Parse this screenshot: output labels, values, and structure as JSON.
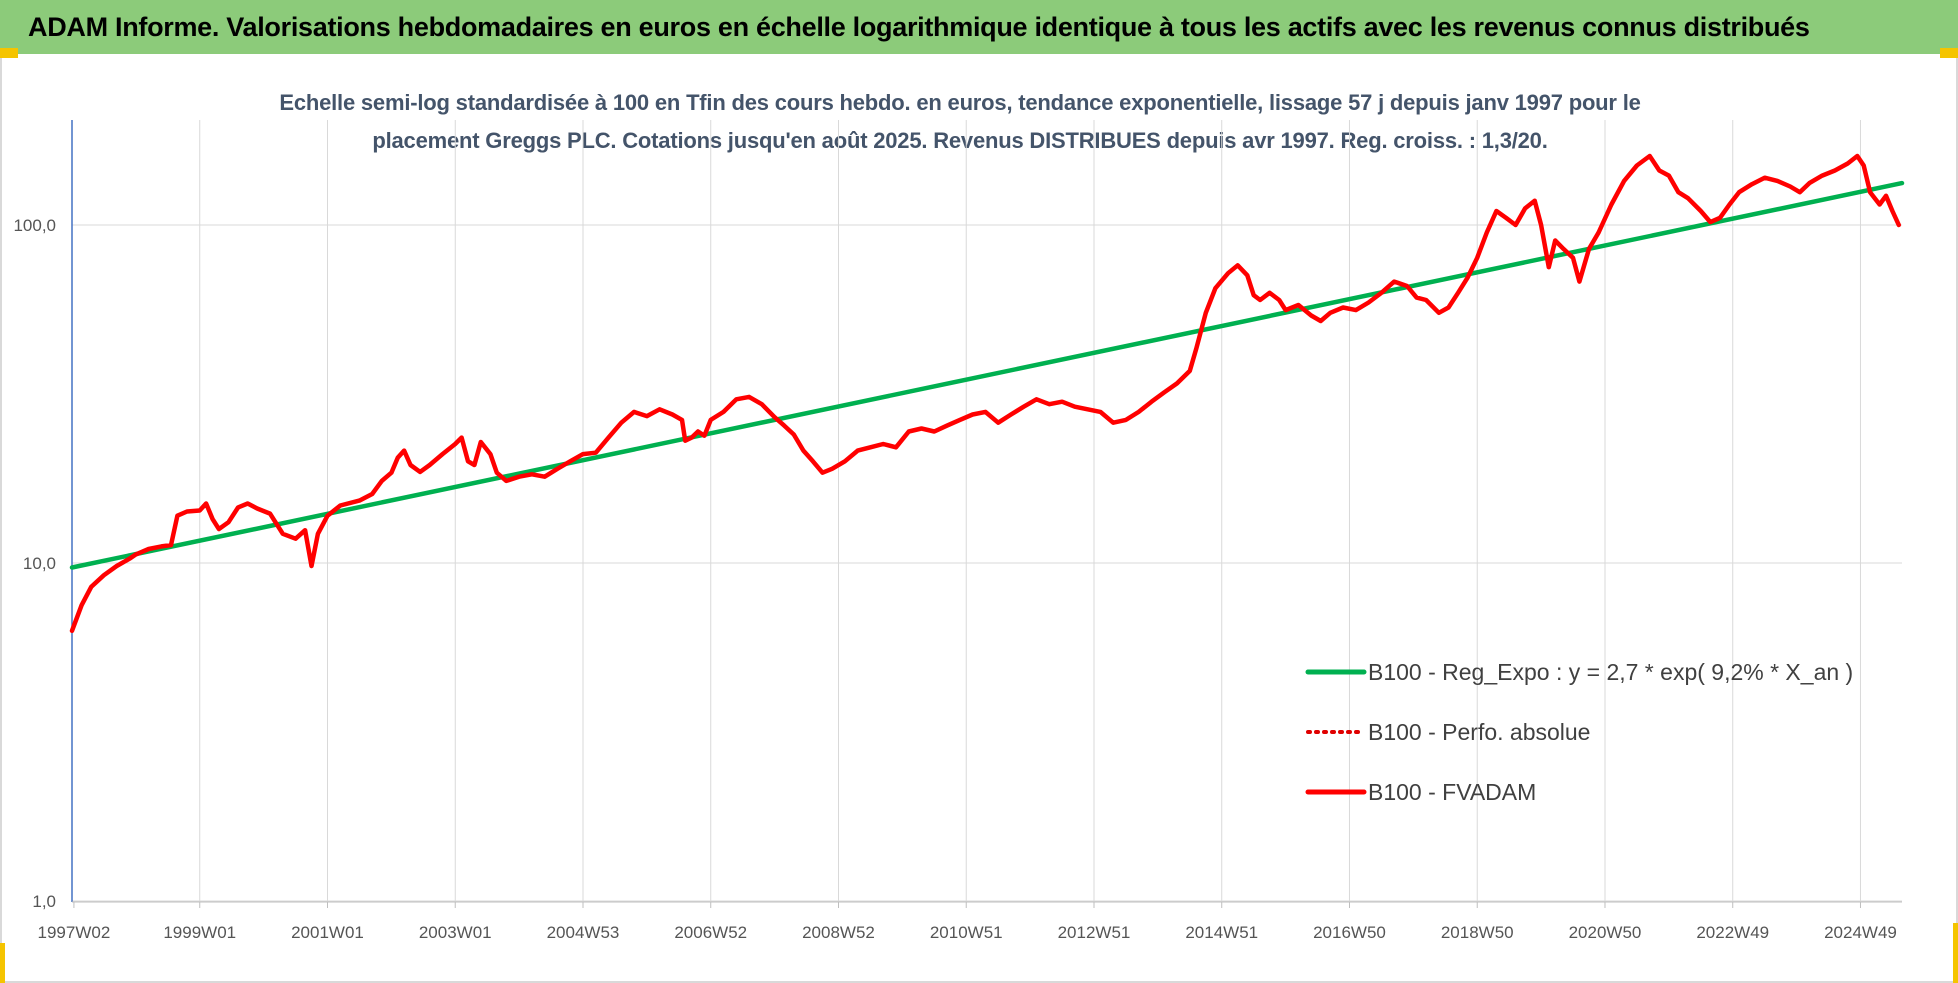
{
  "header": {
    "title": "ADAM Informe. Valorisations hebdomadaires en euros en échelle logarithmique identique à tous les actifs avec les revenus connus distribués",
    "band_color": "#8ccb7a"
  },
  "chart_data": {
    "type": "line",
    "title": "Echelle semi-log standardisée à 100 en Tfin des cours hebdo. en euros, tendance exponentielle, lissage 57 j depuis janv 1997 pour le placement Greggs PLC. Cotations jusqu'en août 2025. Revenus DISTRIBUES depuis avr 1997. Reg. croiss. : 1,3/20.",
    "title_lines": [
      "Echelle semi-log standardisée à 100 en Tfin des cours hebdo. en euros, tendance exponentielle, lissage 57 j depuis janv 1997 pour le",
      "placement Greggs PLC. Cotations jusqu'en août 2025. Revenus DISTRIBUES depuis avr 1997. Reg. croiss. : 1,3/20."
    ],
    "y_scale": "log",
    "ylim": [
      1,
      200
    ],
    "xlim": [
      1997.0,
      2025.65
    ],
    "y_ticks": [
      {
        "value": 1,
        "label": "1,0"
      },
      {
        "value": 10,
        "label": "10,0"
      },
      {
        "value": 100,
        "label": "100,0"
      }
    ],
    "x_ticks": [
      {
        "value": 1997.03,
        "label": "1997W02"
      },
      {
        "value": 1999.0,
        "label": "1999W01"
      },
      {
        "value": 2001.0,
        "label": "2001W01"
      },
      {
        "value": 2003.0,
        "label": "2003W01"
      },
      {
        "value": 2005.0,
        "label": "2004W53"
      },
      {
        "value": 2007.0,
        "label": "2006W52"
      },
      {
        "value": 2009.0,
        "label": "2008W52"
      },
      {
        "value": 2011.0,
        "label": "2010W51"
      },
      {
        "value": 2013.0,
        "label": "2012W51"
      },
      {
        "value": 2015.0,
        "label": "2014W51"
      },
      {
        "value": 2017.0,
        "label": "2016W50"
      },
      {
        "value": 2019.0,
        "label": "2018W50"
      },
      {
        "value": 2021.0,
        "label": "2020W50"
      },
      {
        "value": 2023.0,
        "label": "2022W49"
      },
      {
        "value": 2025.0,
        "label": "2024W49"
      }
    ],
    "grid": {
      "vertical": true,
      "horizontal": true
    },
    "legend_position": "bottom-right",
    "series": [
      {
        "name": "B100 - Reg_Expo : y = 2,7 * exp( 9,2% *  X_an )",
        "color": "#00b050",
        "style": "solid",
        "points": [
          [
            1997.0,
            9.7
          ],
          [
            2025.65,
            133
          ]
        ]
      },
      {
        "name": "B100 - Perfo. absolue",
        "color": "#e00000",
        "style": "dotted",
        "points": []
      },
      {
        "name": "B100 - FVADAM",
        "color": "#ff0000",
        "style": "solid",
        "points": [
          [
            1997.0,
            6.3
          ],
          [
            1997.15,
            7.5
          ],
          [
            1997.3,
            8.5
          ],
          [
            1997.5,
            9.2
          ],
          [
            1997.7,
            9.8
          ],
          [
            1997.9,
            10.3
          ],
          [
            1998.0,
            10.6
          ],
          [
            1998.2,
            11.0
          ],
          [
            1998.4,
            11.2
          ],
          [
            1998.55,
            11.3
          ],
          [
            1998.65,
            13.8
          ],
          [
            1998.8,
            14.2
          ],
          [
            1999.0,
            14.3
          ],
          [
            1999.1,
            15.0
          ],
          [
            1999.2,
            13.5
          ],
          [
            1999.3,
            12.6
          ],
          [
            1999.45,
            13.2
          ],
          [
            1999.6,
            14.6
          ],
          [
            1999.75,
            15.0
          ],
          [
            1999.9,
            14.5
          ],
          [
            2000.1,
            14.0
          ],
          [
            2000.3,
            12.2
          ],
          [
            2000.5,
            11.8
          ],
          [
            2000.65,
            12.5
          ],
          [
            2000.75,
            9.8
          ],
          [
            2000.85,
            12.2
          ],
          [
            2001.0,
            13.8
          ],
          [
            2001.2,
            14.8
          ],
          [
            2001.5,
            15.3
          ],
          [
            2001.7,
            16.0
          ],
          [
            2001.85,
            17.5
          ],
          [
            2002.0,
            18.5
          ],
          [
            2002.1,
            20.5
          ],
          [
            2002.2,
            21.5
          ],
          [
            2002.3,
            19.5
          ],
          [
            2002.45,
            18.6
          ],
          [
            2002.6,
            19.5
          ],
          [
            2002.8,
            21.0
          ],
          [
            2003.0,
            22.5
          ],
          [
            2003.1,
            23.5
          ],
          [
            2003.2,
            20.0
          ],
          [
            2003.3,
            19.5
          ],
          [
            2003.4,
            22.8
          ],
          [
            2003.55,
            21.0
          ],
          [
            2003.65,
            18.5
          ],
          [
            2003.8,
            17.5
          ],
          [
            2004.0,
            18.0
          ],
          [
            2004.2,
            18.3
          ],
          [
            2004.4,
            18.0
          ],
          [
            2004.6,
            19.0
          ],
          [
            2004.8,
            20.0
          ],
          [
            2005.0,
            21.0
          ],
          [
            2005.2,
            21.2
          ],
          [
            2005.4,
            23.5
          ],
          [
            2005.6,
            26.0
          ],
          [
            2005.8,
            28.0
          ],
          [
            2006.0,
            27.2
          ],
          [
            2006.2,
            28.5
          ],
          [
            2006.4,
            27.5
          ],
          [
            2006.55,
            26.5
          ],
          [
            2006.6,
            23.0
          ],
          [
            2006.7,
            23.5
          ],
          [
            2006.8,
            24.5
          ],
          [
            2006.9,
            23.8
          ],
          [
            2007.0,
            26.5
          ],
          [
            2007.2,
            28.0
          ],
          [
            2007.4,
            30.5
          ],
          [
            2007.6,
            31.0
          ],
          [
            2007.8,
            29.5
          ],
          [
            2008.0,
            27.0
          ],
          [
            2008.15,
            25.5
          ],
          [
            2008.3,
            24.0
          ],
          [
            2008.45,
            21.5
          ],
          [
            2008.6,
            20.0
          ],
          [
            2008.75,
            18.5
          ],
          [
            2008.9,
            19.0
          ],
          [
            2009.1,
            20.0
          ],
          [
            2009.3,
            21.5
          ],
          [
            2009.5,
            22.0
          ],
          [
            2009.7,
            22.5
          ],
          [
            2009.9,
            22.0
          ],
          [
            2010.1,
            24.5
          ],
          [
            2010.3,
            25.0
          ],
          [
            2010.5,
            24.5
          ],
          [
            2010.7,
            25.5
          ],
          [
            2010.9,
            26.5
          ],
          [
            2011.1,
            27.5
          ],
          [
            2011.3,
            28.0
          ],
          [
            2011.5,
            26.0
          ],
          [
            2011.7,
            27.5
          ],
          [
            2011.9,
            29.0
          ],
          [
            2012.1,
            30.5
          ],
          [
            2012.3,
            29.5
          ],
          [
            2012.5,
            30.0
          ],
          [
            2012.7,
            29.0
          ],
          [
            2012.9,
            28.5
          ],
          [
            2013.1,
            28.0
          ],
          [
            2013.3,
            26.0
          ],
          [
            2013.5,
            26.5
          ],
          [
            2013.7,
            28.0
          ],
          [
            2013.9,
            30.0
          ],
          [
            2014.1,
            32.0
          ],
          [
            2014.3,
            34.0
          ],
          [
            2014.5,
            37.0
          ],
          [
            2014.6,
            43.0
          ],
          [
            2014.75,
            55.0
          ],
          [
            2014.9,
            65.0
          ],
          [
            2015.1,
            72.0
          ],
          [
            2015.25,
            76.0
          ],
          [
            2015.4,
            71.0
          ],
          [
            2015.5,
            62.0
          ],
          [
            2015.6,
            60.0
          ],
          [
            2015.75,
            63.0
          ],
          [
            2015.9,
            60.0
          ],
          [
            2016.0,
            56.0
          ],
          [
            2016.2,
            58.0
          ],
          [
            2016.4,
            54.0
          ],
          [
            2016.55,
            52.0
          ],
          [
            2016.7,
            55.0
          ],
          [
            2016.9,
            57.0
          ],
          [
            2017.1,
            56.0
          ],
          [
            2017.3,
            59.0
          ],
          [
            2017.5,
            63.0
          ],
          [
            2017.7,
            68.0
          ],
          [
            2017.9,
            66.0
          ],
          [
            2018.05,
            61.0
          ],
          [
            2018.2,
            60.0
          ],
          [
            2018.4,
            55.0
          ],
          [
            2018.55,
            57.0
          ],
          [
            2018.7,
            63.0
          ],
          [
            2018.85,
            70.0
          ],
          [
            2019.0,
            80.0
          ],
          [
            2019.15,
            95.0
          ],
          [
            2019.3,
            110.0
          ],
          [
            2019.45,
            105.0
          ],
          [
            2019.6,
            100.0
          ],
          [
            2019.75,
            112.0
          ],
          [
            2019.9,
            118.0
          ],
          [
            2020.0,
            100.0
          ],
          [
            2020.12,
            75.0
          ],
          [
            2020.22,
            90.0
          ],
          [
            2020.35,
            85.0
          ],
          [
            2020.5,
            80.0
          ],
          [
            2020.6,
            68.0
          ],
          [
            2020.75,
            85.0
          ],
          [
            2020.9,
            95.0
          ],
          [
            2021.1,
            115.0
          ],
          [
            2021.3,
            135.0
          ],
          [
            2021.5,
            150.0
          ],
          [
            2021.7,
            160.0
          ],
          [
            2021.85,
            145.0
          ],
          [
            2022.0,
            140.0
          ],
          [
            2022.15,
            125.0
          ],
          [
            2022.3,
            120.0
          ],
          [
            2022.5,
            110.0
          ],
          [
            2022.65,
            102.0
          ],
          [
            2022.8,
            105.0
          ],
          [
            2022.95,
            115.0
          ],
          [
            2023.1,
            125.0
          ],
          [
            2023.3,
            132.0
          ],
          [
            2023.5,
            138.0
          ],
          [
            2023.7,
            135.0
          ],
          [
            2023.9,
            130.0
          ],
          [
            2024.05,
            125.0
          ],
          [
            2024.2,
            133.0
          ],
          [
            2024.4,
            140.0
          ],
          [
            2024.6,
            145.0
          ],
          [
            2024.8,
            152.0
          ],
          [
            2024.95,
            160.0
          ],
          [
            2025.05,
            150.0
          ],
          [
            2025.15,
            125.0
          ],
          [
            2025.3,
            115.0
          ],
          [
            2025.4,
            122.0
          ],
          [
            2025.5,
            110.0
          ],
          [
            2025.6,
            100.0
          ]
        ]
      }
    ]
  }
}
